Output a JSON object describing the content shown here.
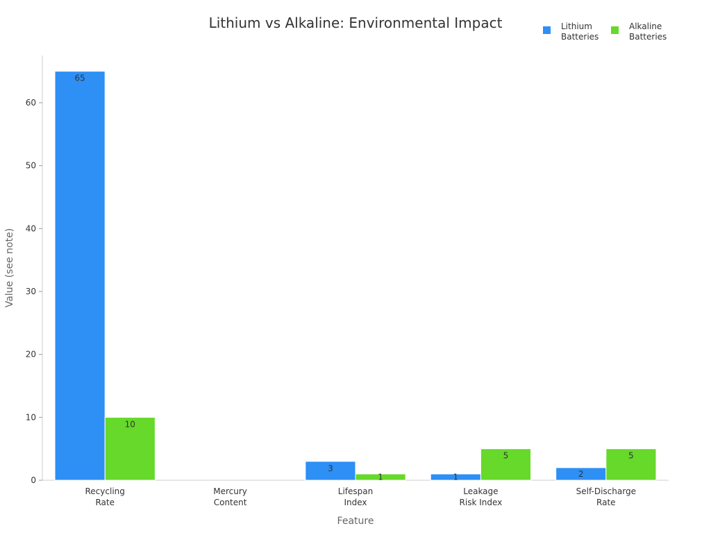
{
  "chart_data": {
    "type": "bar",
    "title": "Lithium vs Alkaline: Environmental Impact",
    "xlabel": "Feature",
    "ylabel": "Value (see note)",
    "ylim": [
      0,
      67.5
    ],
    "yticks": [
      0,
      10,
      20,
      30,
      40,
      50,
      60
    ],
    "grid": false,
    "legend_position": "top-right",
    "categories": [
      [
        "Recycling",
        "Rate"
      ],
      [
        "Mercury",
        "Content"
      ],
      [
        "Lifespan",
        "Index"
      ],
      [
        "Leakage",
        "Risk Index"
      ],
      [
        "Self-Discharge",
        "Rate"
      ]
    ],
    "series": [
      {
        "name": [
          "Lithium",
          "Batteries"
        ],
        "color": "#2e8ff5",
        "values": [
          65,
          0,
          3,
          1,
          2
        ],
        "labels": [
          "65",
          "",
          "3",
          "1",
          "2"
        ]
      },
      {
        "name": [
          "Alkaline",
          "Batteries"
        ],
        "color": "#66d92a",
        "values": [
          10,
          0,
          1,
          5,
          5
        ],
        "labels": [
          "10",
          "",
          "1",
          "5",
          "5"
        ]
      }
    ]
  }
}
